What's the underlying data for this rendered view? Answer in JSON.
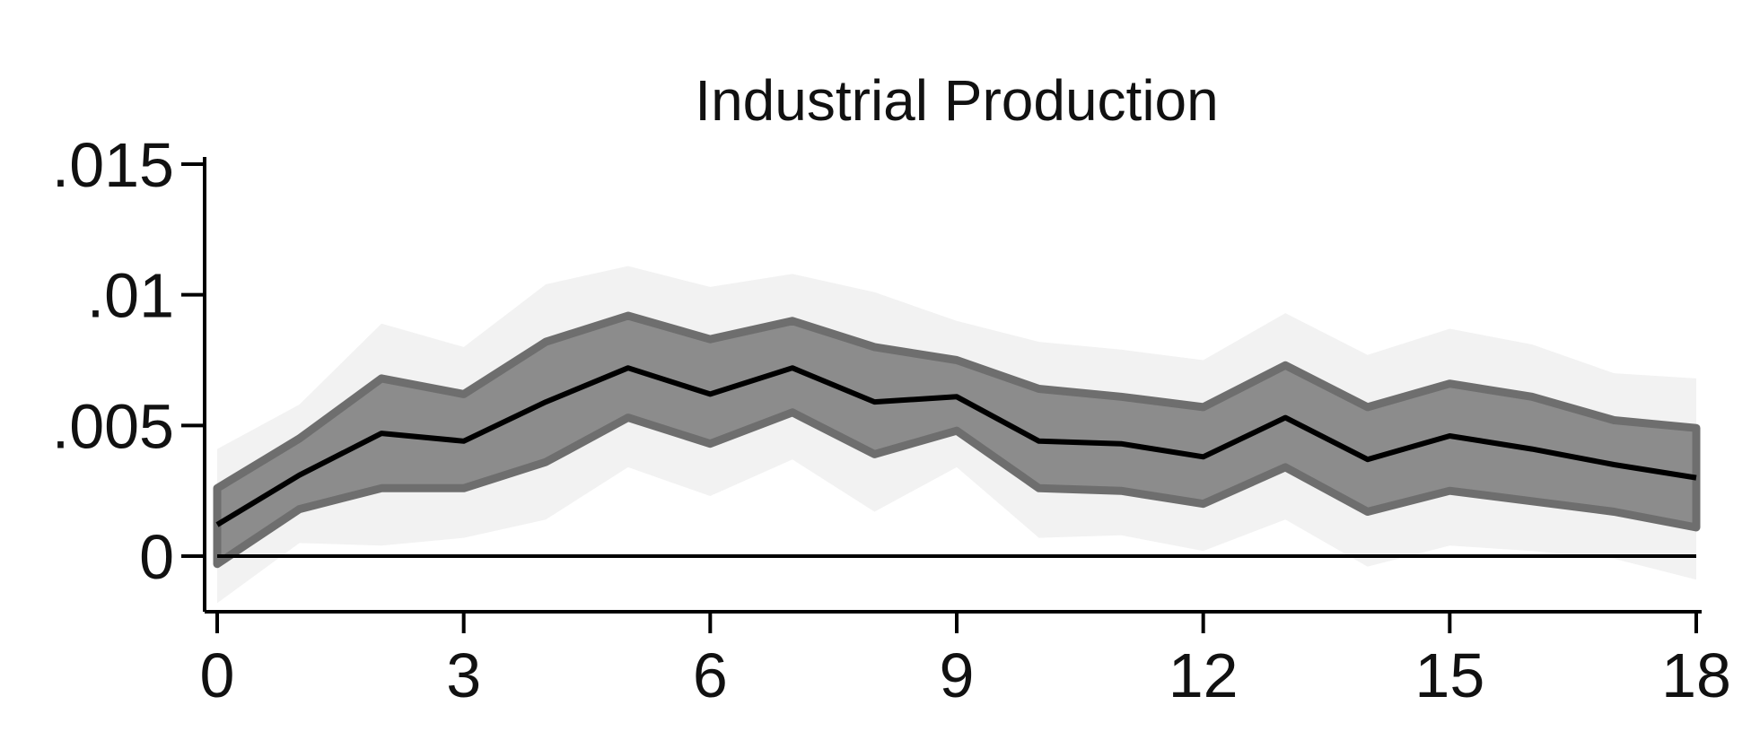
{
  "chart_data": {
    "type": "area",
    "title": "Industrial Production",
    "xlabel": "",
    "ylabel": "",
    "xlim": [
      0,
      18
    ],
    "ylim": [
      -0.002,
      0.015
    ],
    "x_ticks": [
      0,
      3,
      6,
      9,
      12,
      15,
      18
    ],
    "x_tick_labels": [
      "0",
      "3",
      "6",
      "9",
      "12",
      "15",
      "18"
    ],
    "y_ticks": [
      0,
      0.005,
      0.01,
      0.015
    ],
    "y_tick_labels": [
      "0",
      ".005",
      ".01",
      ".015"
    ],
    "grid": false,
    "legend": "none",
    "reference_line_y": 0,
    "x": [
      0,
      1,
      2,
      3,
      4,
      5,
      6,
      7,
      8,
      9,
      10,
      11,
      12,
      13,
      14,
      15,
      16,
      17,
      18
    ],
    "series": [
      {
        "role": "point_estimate",
        "color": "#000000",
        "values": [
          0.0012,
          0.0031,
          0.0047,
          0.0044,
          0.0059,
          0.0072,
          0.0062,
          0.0072,
          0.0059,
          0.0061,
          0.0044,
          0.0043,
          0.0038,
          0.0053,
          0.0037,
          0.0046,
          0.0041,
          0.0035,
          0.003
        ]
      },
      {
        "role": "inner_band_upper",
        "color": "#6e6e6e",
        "values": [
          0.0026,
          0.0045,
          0.0068,
          0.0062,
          0.0082,
          0.0092,
          0.0083,
          0.009,
          0.008,
          0.0075,
          0.0064,
          0.0061,
          0.0057,
          0.0073,
          0.0057,
          0.0066,
          0.0061,
          0.0052,
          0.0049
        ]
      },
      {
        "role": "inner_band_lower",
        "color": "#6e6e6e",
        "values": [
          -0.0003,
          0.0018,
          0.0026,
          0.0026,
          0.0036,
          0.0053,
          0.0043,
          0.0055,
          0.0039,
          0.0048,
          0.0026,
          0.0025,
          0.002,
          0.0034,
          0.0017,
          0.0025,
          0.0021,
          0.0017,
          0.0011
        ]
      },
      {
        "role": "outer_band_upper",
        "color": "#f2f2f2",
        "values": [
          0.0041,
          0.0058,
          0.0089,
          0.008,
          0.0104,
          0.0111,
          0.0103,
          0.0108,
          0.0101,
          0.009,
          0.0082,
          0.0079,
          0.0075,
          0.0093,
          0.0077,
          0.0087,
          0.0081,
          0.007,
          0.0068
        ]
      },
      {
        "role": "outer_band_lower",
        "color": "#f2f2f2",
        "values": [
          -0.0018,
          0.0005,
          0.0004,
          0.0007,
          0.0014,
          0.0034,
          0.0023,
          0.0037,
          0.0017,
          0.0034,
          0.0007,
          0.0008,
          0.0002,
          0.0014,
          -0.0004,
          0.0004,
          0.0002,
          -0.0001,
          -0.0009
        ]
      }
    ]
  }
}
